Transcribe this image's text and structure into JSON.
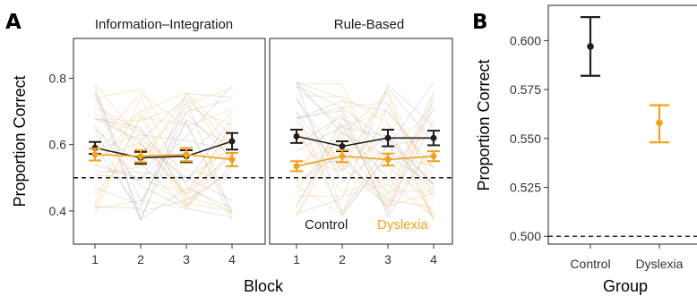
{
  "colors": {
    "control": "#1f1f1f",
    "dyslexia": "#f0a21e",
    "bg_line_control": "#b8b8b8",
    "bg_line_dyslexia": "#f6d3a0"
  },
  "chart_data": [
    {
      "panel_label": "A",
      "type": "line",
      "facets": [
        "Information–Integration",
        "Rule-Based"
      ],
      "x": [
        1,
        2,
        3,
        4
      ],
      "xlabel": "Block",
      "ylabel": "Proportion Correct",
      "ylim": [
        0.3,
        0.92
      ],
      "yticks": [
        0.4,
        0.6,
        0.8
      ],
      "yticklabels": [
        "0.4",
        "0.6",
        "0.8"
      ],
      "chance_line": 0.5,
      "legend": {
        "placement": "bottom-right of second facet",
        "entries": [
          "Control",
          "Dyslexia"
        ]
      },
      "series": [
        {
          "name": "Control",
          "facet": "Information–Integration",
          "values": [
            0.59,
            0.56,
            0.565,
            0.61
          ],
          "err": [
            0.018,
            0.018,
            0.018,
            0.025
          ]
        },
        {
          "name": "Dyslexia",
          "facet": "Information–Integration",
          "values": [
            0.57,
            0.565,
            0.57,
            0.555
          ],
          "err": [
            0.018,
            0.018,
            0.02,
            0.02
          ]
        },
        {
          "name": "Control",
          "facet": "Rule-Based",
          "values": [
            0.625,
            0.595,
            0.62,
            0.62
          ],
          "err": [
            0.02,
            0.015,
            0.025,
            0.022
          ]
        },
        {
          "name": "Dyslexia",
          "facet": "Rule-Based",
          "values": [
            0.535,
            0.565,
            0.555,
            0.565
          ],
          "err": [
            0.015,
            0.018,
            0.018,
            0.015
          ]
        }
      ]
    },
    {
      "panel_label": "B",
      "type": "scatter",
      "categories": [
        "Control",
        "Dyslexia"
      ],
      "xlabel": "Group",
      "ylabel": "Proportion Correct",
      "ylim": [
        0.496,
        0.618
      ],
      "yticks": [
        0.5,
        0.525,
        0.55,
        0.575,
        0.6
      ],
      "yticklabels": [
        "0.500",
        "0.525",
        "0.550",
        "0.575",
        "0.600"
      ],
      "chance_line": 0.5,
      "series": [
        {
          "name": "Control",
          "values": [
            0.597
          ],
          "err_low": [
            0.582
          ],
          "err_high": [
            0.612
          ]
        },
        {
          "name": "Dyslexia",
          "values": [
            0.558
          ],
          "err_low": [
            0.548
          ],
          "err_high": [
            0.567
          ]
        }
      ]
    }
  ]
}
